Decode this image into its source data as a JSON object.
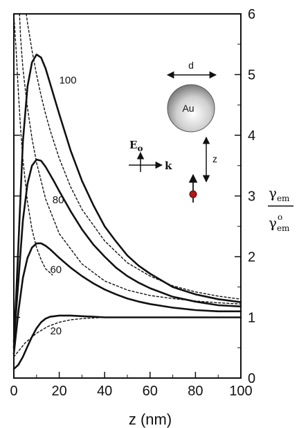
{
  "chart_data": {
    "type": "line",
    "title": "",
    "xlabel": "z (nm)",
    "ylabel_main": "γ",
    "ylabel_sub_num": "em",
    "ylabel_sub_den": "em",
    "ylabel_sup_den": "o",
    "xlim": [
      0,
      100
    ],
    "ylim": [
      0,
      6
    ],
    "xticks": [
      "0",
      "20",
      "40",
      "60",
      "80",
      "100"
    ],
    "yticks": [
      "0",
      "1",
      "2",
      "3",
      "4",
      "5",
      "6"
    ],
    "grid": false,
    "series": [
      {
        "name": "100",
        "style": "solid",
        "x": [
          0,
          2,
          4,
          6,
          8,
          10,
          12,
          14,
          16,
          18,
          20,
          25,
          30,
          35,
          40,
          45,
          50,
          55,
          60,
          70,
          80,
          90,
          100
        ],
        "y": [
          0.5,
          2.2,
          3.9,
          4.8,
          5.2,
          5.33,
          5.28,
          5.1,
          4.85,
          4.6,
          4.35,
          3.75,
          3.25,
          2.85,
          2.5,
          2.25,
          2.02,
          1.85,
          1.72,
          1.5,
          1.38,
          1.3,
          1.25
        ]
      },
      {
        "name": "80",
        "style": "solid",
        "x": [
          0,
          2,
          4,
          6,
          8,
          10,
          12,
          14,
          16,
          18,
          20,
          25,
          30,
          35,
          40,
          45,
          50,
          55,
          60,
          70,
          80,
          90,
          100
        ],
        "y": [
          0.6,
          1.6,
          2.6,
          3.2,
          3.5,
          3.6,
          3.58,
          3.48,
          3.35,
          3.22,
          3.08,
          2.75,
          2.45,
          2.2,
          2.0,
          1.82,
          1.68,
          1.57,
          1.48,
          1.34,
          1.26,
          1.2,
          1.18
        ]
      },
      {
        "name": "60",
        "style": "solid",
        "x": [
          0,
          2,
          4,
          6,
          8,
          10,
          12,
          14,
          16,
          18,
          20,
          25,
          30,
          35,
          40,
          45,
          50,
          55,
          60,
          70,
          80,
          90,
          100
        ],
        "y": [
          0.4,
          1.1,
          1.65,
          1.98,
          2.15,
          2.22,
          2.22,
          2.18,
          2.12,
          2.05,
          1.98,
          1.82,
          1.68,
          1.56,
          1.46,
          1.38,
          1.31,
          1.26,
          1.22,
          1.16,
          1.12,
          1.1,
          1.1
        ]
      },
      {
        "name": "20",
        "style": "solid",
        "x": [
          0,
          2,
          4,
          6,
          8,
          10,
          12,
          14,
          16,
          18,
          20,
          25,
          30,
          35,
          40,
          50,
          60,
          70,
          80,
          90,
          100
        ],
        "y": [
          0.15,
          0.22,
          0.35,
          0.52,
          0.68,
          0.82,
          0.92,
          0.98,
          1.01,
          1.02,
          1.03,
          1.03,
          1.02,
          1.01,
          1.0,
          1.0,
          1.0,
          1.0,
          1.0,
          1.0,
          1.0
        ]
      },
      {
        "name": "",
        "style": "dotted",
        "x": [
          2.5,
          3,
          4,
          6,
          8,
          10,
          14,
          20,
          30,
          40,
          50,
          60,
          70,
          80,
          90,
          100
        ],
        "y": [
          6.0,
          5.6,
          5.1,
          4.45,
          3.95,
          3.55,
          2.95,
          2.38,
          1.88,
          1.6,
          1.45,
          1.36,
          1.31,
          1.27,
          1.24,
          1.22
        ]
      },
      {
        "name": "",
        "style": "dotted",
        "x": [
          5.5,
          6,
          8,
          10,
          12,
          14,
          16,
          18,
          20,
          25,
          30,
          40,
          50,
          60,
          70,
          80,
          90,
          100
        ],
        "y": [
          6.0,
          5.85,
          5.4,
          5.0,
          4.65,
          4.35,
          4.08,
          3.85,
          3.62,
          3.15,
          2.78,
          2.26,
          1.9,
          1.68,
          1.52,
          1.42,
          1.35,
          1.3
        ]
      },
      {
        "name": "",
        "style": "dotted",
        "x": [
          0,
          1,
          2,
          3,
          4,
          6,
          8,
          10,
          12,
          14,
          17
        ],
        "y": [
          6.0,
          5.4,
          4.7,
          4.1,
          3.6,
          2.9,
          2.45,
          2.15,
          1.95,
          1.8,
          1.7
        ]
      },
      {
        "name": "",
        "style": "dotted",
        "x": [
          0,
          5,
          10,
          15,
          20,
          25,
          30,
          40,
          50,
          60,
          80,
          100
        ],
        "y": [
          0.35,
          0.58,
          0.74,
          0.85,
          0.92,
          0.96,
          0.98,
          1.0,
          1.0,
          1.0,
          1.0,
          1.0
        ]
      }
    ],
    "curve_labels": [
      {
        "text": "100",
        "x": 20,
        "y": 4.85
      },
      {
        "text": "80",
        "x": 17,
        "y": 2.88
      },
      {
        "text": "60",
        "x": 16,
        "y": 1.73
      },
      {
        "text": "20",
        "x": 16,
        "y": 0.72
      }
    ],
    "inset": {
      "sphere_label": "Au",
      "diameter_label": "d",
      "distance_label": "z",
      "field_label": "E",
      "field_sub": "o",
      "wavevector_label": "k",
      "sphere_color": "#999999",
      "dipole_color": "#b01818"
    }
  }
}
